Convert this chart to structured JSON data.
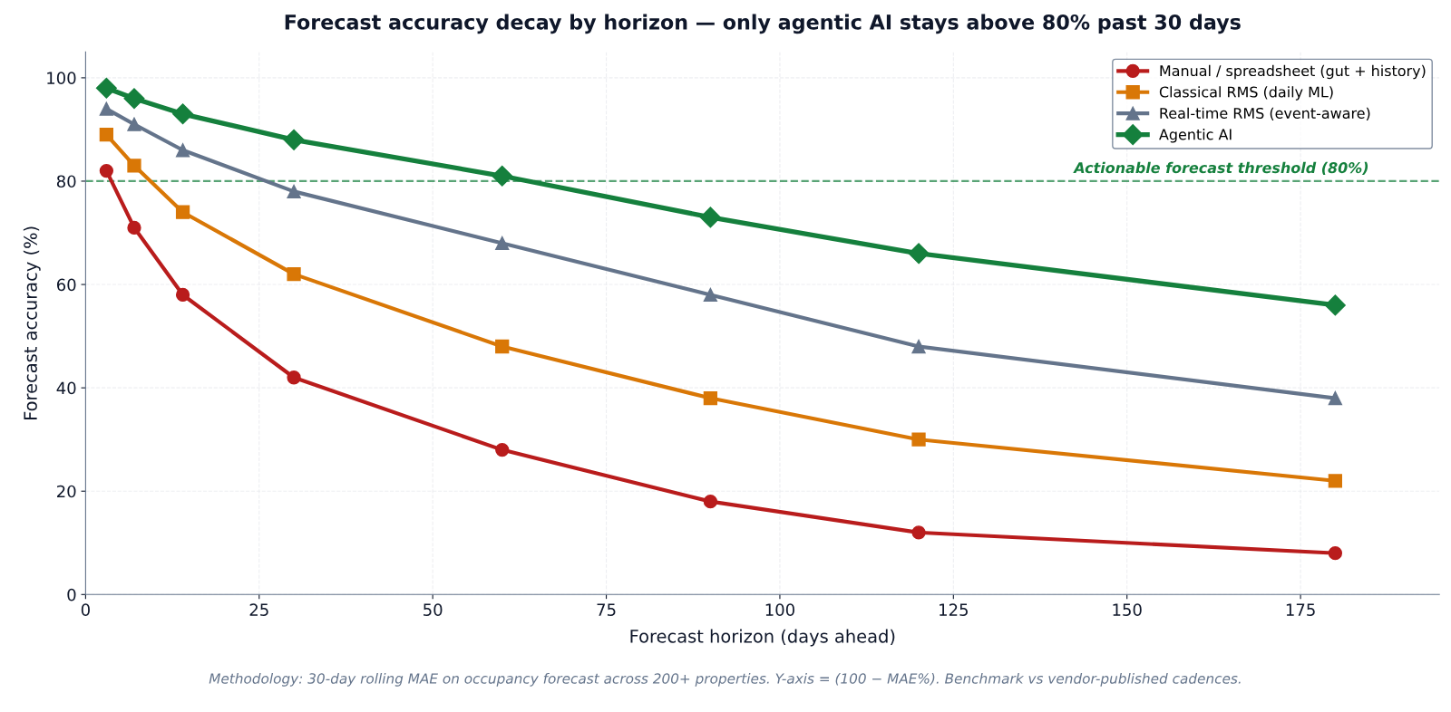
{
  "chart_data": {
    "type": "line",
    "title": "Forecast accuracy decay by horizon — only agentic AI stays above 80% past 30 days",
    "xlabel": "Forecast horizon (days ahead)",
    "ylabel": "Forecast accuracy (%)",
    "x": [
      3,
      7,
      14,
      30,
      60,
      90,
      120,
      180
    ],
    "series": [
      {
        "name": "Manual / spreadsheet (gut + history)",
        "color": "#b91c1c",
        "marker": "circle",
        "values": [
          82,
          71,
          58,
          42,
          28,
          18,
          12,
          8
        ]
      },
      {
        "name": "Classical RMS (daily ML)",
        "color": "#d97706",
        "marker": "square",
        "values": [
          89,
          83,
          74,
          62,
          48,
          38,
          30,
          22
        ]
      },
      {
        "name": "Real-time RMS (event-aware)",
        "color": "#64748b",
        "marker": "triangle",
        "values": [
          94,
          91,
          86,
          78,
          68,
          58,
          48,
          38
        ]
      },
      {
        "name": "Agentic AI",
        "color": "#15803d",
        "marker": "diamond",
        "values": [
          98,
          96,
          93,
          88,
          81,
          73,
          66,
          56
        ]
      }
    ],
    "xlim": [
      0,
      195
    ],
    "xticks": [
      0,
      25,
      50,
      75,
      100,
      125,
      150,
      175
    ],
    "ylim": [
      0,
      105
    ],
    "yticks": [
      0,
      20,
      40,
      60,
      80,
      100
    ],
    "ref_lines": [
      {
        "axis": "y",
        "value": 80,
        "label": "Actionable forecast threshold (80%)",
        "color": "#15803d",
        "line_style": "dashed"
      }
    ],
    "annotations": [
      "Methodology: 30-day rolling MAE on occupancy forecast across 200+ properties. Y-axis = (100 − MAE%). Benchmark vs vendor-published cadences."
    ],
    "grid": true,
    "legend": "top right",
    "line_style": "solid"
  }
}
